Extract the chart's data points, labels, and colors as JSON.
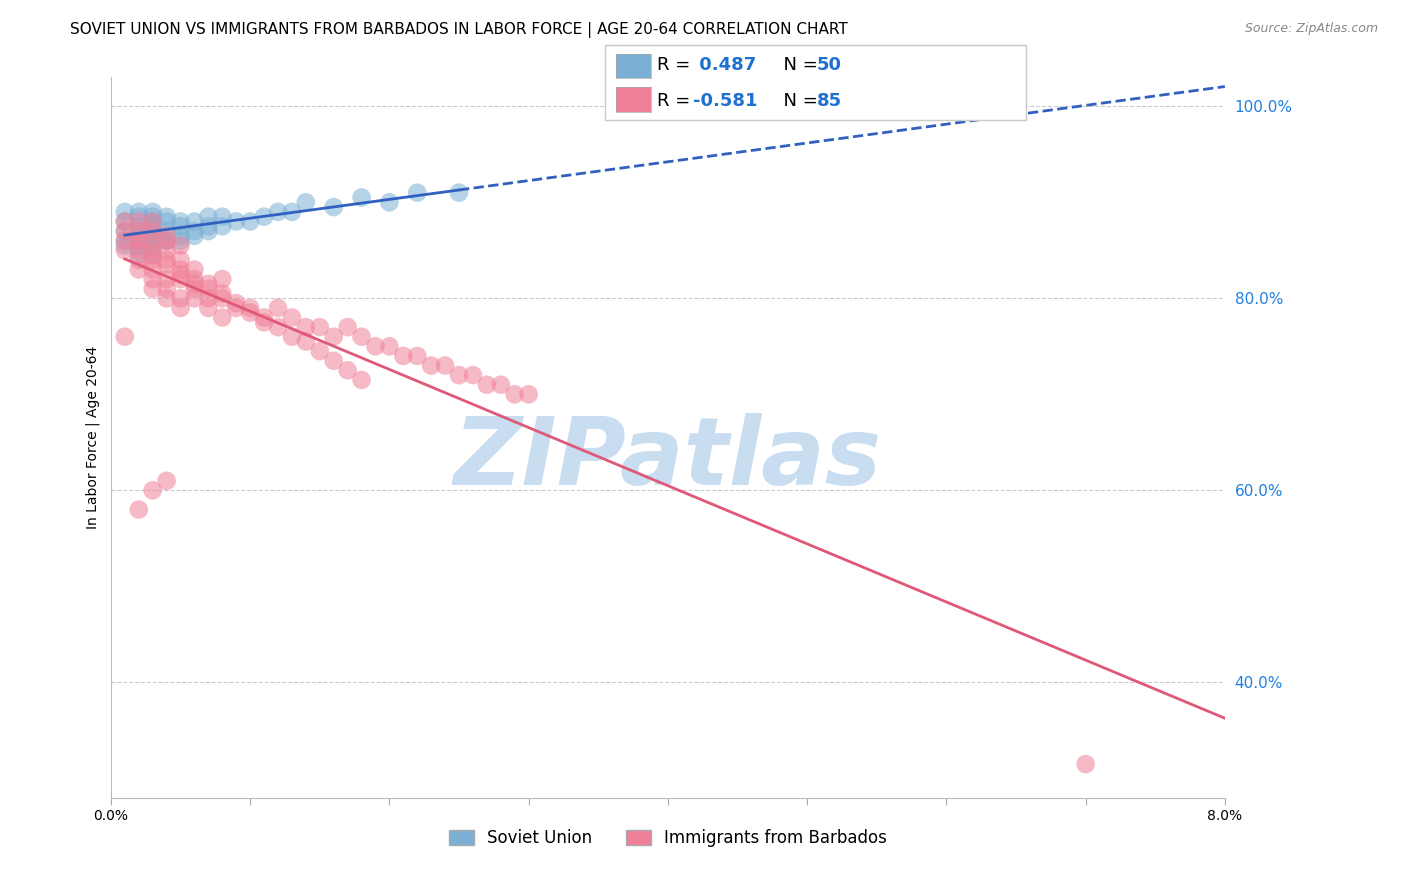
{
  "title": "SOVIET UNION VS IMMIGRANTS FROM BARBADOS IN LABOR FORCE | AGE 20-64 CORRELATION CHART",
  "source": "Source: ZipAtlas.com",
  "ylabel": "In Labor Force | Age 20-64",
  "xmin": 0.0,
  "xmax": 0.08,
  "ymin": 0.28,
  "ymax": 1.03,
  "ytick_labels": [
    "40.0%",
    "60.0%",
    "80.0%",
    "100.0%"
  ],
  "ytick_values": [
    0.4,
    0.6,
    0.8,
    1.0
  ],
  "legend_r_soviet": "0.487",
  "legend_n_soviet": "50",
  "legend_r_barbados": "-0.581",
  "legend_n_barbados": "85",
  "soviet_R": 0.487,
  "soviet_N": 50,
  "barbados_R": -0.581,
  "barbados_N": 85,
  "soviet_color": "#7bafd4",
  "barbados_color": "#f08098",
  "soviet_line_color": "#3060c0",
  "barbados_line_color": "#e05878",
  "background_color": "#ffffff",
  "grid_color": "#cccccc",
  "watermark": "ZIPatlas",
  "watermark_color": "#c8ddf0",
  "title_fontsize": 11,
  "axis_label_fontsize": 10,
  "tick_fontsize": 10,
  "legend_value_color": "#2070d0",
  "right_tick_color": "#2080e0",
  "soviet_x": [
    0.001,
    0.001,
    0.001,
    0.001,
    0.002,
    0.002,
    0.002,
    0.002,
    0.002,
    0.002,
    0.003,
    0.003,
    0.003,
    0.003,
    0.003,
    0.003,
    0.003,
    0.004,
    0.004,
    0.004,
    0.004,
    0.005,
    0.005,
    0.005,
    0.006,
    0.006,
    0.007,
    0.007,
    0.008,
    0.009,
    0.01,
    0.011,
    0.012,
    0.013,
    0.014,
    0.016,
    0.018,
    0.02,
    0.022,
    0.025,
    0.001,
    0.002,
    0.002,
    0.003,
    0.003,
    0.004,
    0.005,
    0.006,
    0.007,
    0.008
  ],
  "soviet_y": [
    0.87,
    0.88,
    0.86,
    0.89,
    0.875,
    0.885,
    0.865,
    0.89,
    0.87,
    0.855,
    0.875,
    0.885,
    0.865,
    0.88,
    0.87,
    0.86,
    0.89,
    0.88,
    0.87,
    0.86,
    0.885,
    0.875,
    0.865,
    0.88,
    0.88,
    0.87,
    0.875,
    0.885,
    0.885,
    0.88,
    0.88,
    0.885,
    0.89,
    0.89,
    0.9,
    0.895,
    0.905,
    0.9,
    0.91,
    0.91,
    0.855,
    0.855,
    0.845,
    0.855,
    0.845,
    0.86,
    0.86,
    0.865,
    0.87,
    0.875
  ],
  "barbados_x": [
    0.001,
    0.001,
    0.001,
    0.001,
    0.002,
    0.002,
    0.002,
    0.002,
    0.002,
    0.003,
    0.003,
    0.003,
    0.003,
    0.003,
    0.004,
    0.004,
    0.004,
    0.004,
    0.005,
    0.005,
    0.005,
    0.006,
    0.006,
    0.006,
    0.007,
    0.007,
    0.008,
    0.008,
    0.009,
    0.01,
    0.011,
    0.012,
    0.013,
    0.014,
    0.015,
    0.016,
    0.017,
    0.018,
    0.019,
    0.02,
    0.021,
    0.022,
    0.023,
    0.024,
    0.025,
    0.026,
    0.027,
    0.028,
    0.029,
    0.03,
    0.002,
    0.003,
    0.003,
    0.004,
    0.004,
    0.005,
    0.005,
    0.006,
    0.007,
    0.008,
    0.002,
    0.003,
    0.004,
    0.005,
    0.006,
    0.007,
    0.008,
    0.009,
    0.01,
    0.011,
    0.012,
    0.013,
    0.014,
    0.015,
    0.016,
    0.017,
    0.018,
    0.003,
    0.004,
    0.005,
    0.002,
    0.003,
    0.004,
    0.07,
    0.001
  ],
  "barbados_y": [
    0.87,
    0.86,
    0.85,
    0.88,
    0.87,
    0.86,
    0.85,
    0.84,
    0.88,
    0.86,
    0.85,
    0.84,
    0.87,
    0.83,
    0.85,
    0.84,
    0.82,
    0.86,
    0.84,
    0.82,
    0.83,
    0.83,
    0.81,
    0.82,
    0.8,
    0.81,
    0.8,
    0.82,
    0.79,
    0.79,
    0.78,
    0.79,
    0.78,
    0.77,
    0.77,
    0.76,
    0.77,
    0.76,
    0.75,
    0.75,
    0.74,
    0.74,
    0.73,
    0.73,
    0.72,
    0.72,
    0.71,
    0.71,
    0.7,
    0.7,
    0.83,
    0.82,
    0.81,
    0.81,
    0.8,
    0.8,
    0.79,
    0.8,
    0.79,
    0.78,
    0.86,
    0.845,
    0.835,
    0.825,
    0.815,
    0.815,
    0.805,
    0.795,
    0.785,
    0.775,
    0.77,
    0.76,
    0.755,
    0.745,
    0.735,
    0.725,
    0.715,
    0.88,
    0.865,
    0.855,
    0.58,
    0.6,
    0.61,
    0.315,
    0.76
  ]
}
